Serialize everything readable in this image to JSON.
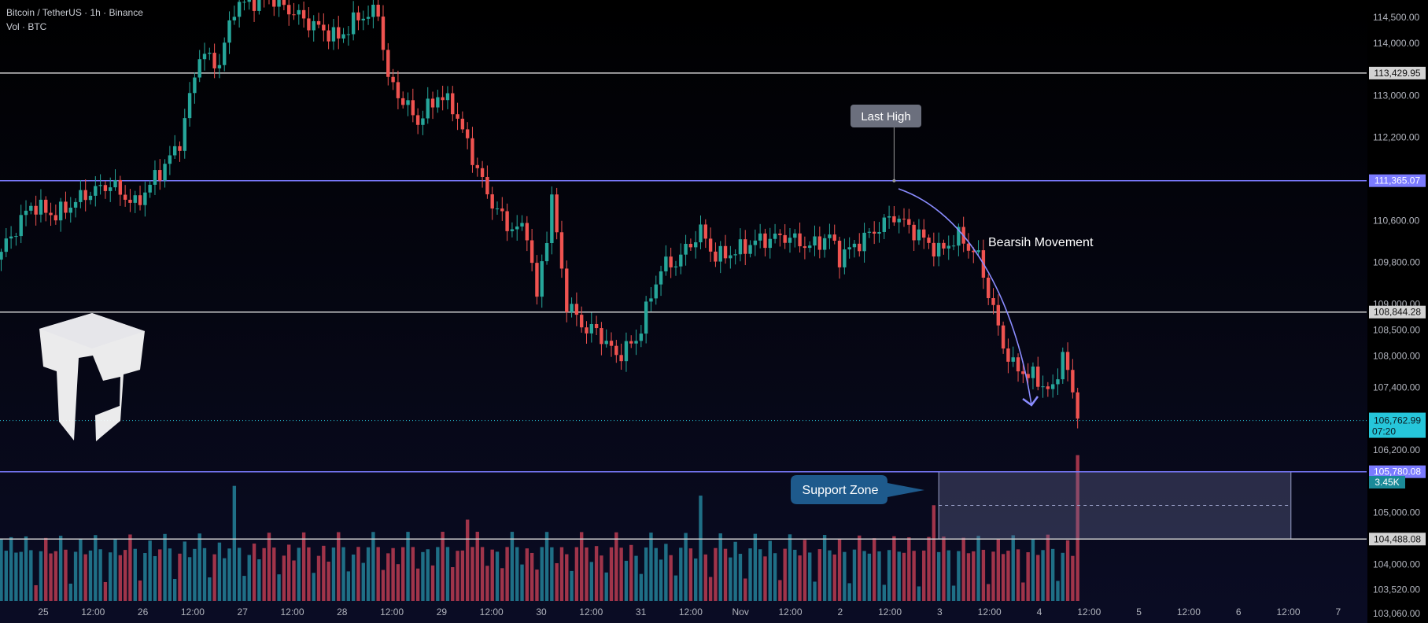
{
  "header": {
    "symbol_line": "Bitcoin / TetherUS · 1h · Binance",
    "volume_line": "Vol · BTC"
  },
  "colors": {
    "up": "#26a69a",
    "down": "#ef5350",
    "up_vol": "#1f6f86",
    "down_vol": "#a0344a",
    "blue_line": "#7b7bff",
    "white_line": "#d0d0d0",
    "current_price": "#26c6da",
    "arrow": "#8a8cff"
  },
  "chart_data": {
    "type": "candlestick",
    "symbol": "BTCUSDT",
    "timeframe": "1h",
    "ylim": [
      102960,
      114800
    ],
    "y_ticks": [
      "114,500.00",
      "114,000.00",
      "113,000.00",
      "112,200.00",
      "110,600.00",
      "109,800.00",
      "109,000.00",
      "108,500.00",
      "108,000.00",
      "107,400.00",
      "106,200.00",
      "105,000.00",
      "104,000.00",
      "103,520.00",
      "103,060.00"
    ],
    "x_ticks": [
      "25",
      "12:00",
      "26",
      "12:00",
      "27",
      "12:00",
      "28",
      "12:00",
      "29",
      "12:00",
      "30",
      "12:00",
      "31",
      "12:00",
      "Nov",
      "12:00",
      "2",
      "12:00",
      "3",
      "12:00",
      "4",
      "12:00",
      "5",
      "12:00",
      "6",
      "12:00",
      "7"
    ],
    "levels": [
      {
        "price": 113429.95,
        "label": "113,429.95",
        "style": "white"
      },
      {
        "price": 111365.07,
        "label": "111,365.07",
        "style": "blue"
      },
      {
        "price": 108844.28,
        "label": "108,844.28",
        "style": "white"
      },
      {
        "price": 105780.08,
        "label": "105,780.08",
        "style": "blue"
      },
      {
        "price": 104488.08,
        "label": "104,488.08",
        "style": "white"
      }
    ],
    "current_price": {
      "price": 106762.99,
      "label": "106,762.99",
      "countdown": "07:20"
    },
    "volume_label": "3.45K",
    "path": [
      [
        0,
        110000
      ],
      [
        6,
        110900
      ],
      [
        11,
        110700
      ],
      [
        17,
        111100
      ],
      [
        22,
        111300
      ],
      [
        27,
        110900
      ],
      [
        34,
        111800
      ],
      [
        36,
        112100
      ],
      [
        40,
        113800
      ],
      [
        44,
        113600
      ],
      [
        47,
        114700
      ],
      [
        54,
        114900
      ],
      [
        62,
        114400
      ],
      [
        68,
        114100
      ],
      [
        72,
        114500
      ],
      [
        76,
        114600
      ],
      [
        78,
        113300
      ],
      [
        84,
        112500
      ],
      [
        88,
        113000
      ],
      [
        91,
        112800
      ],
      [
        98,
        111100
      ],
      [
        102,
        110500
      ],
      [
        106,
        110400
      ],
      [
        108,
        109100
      ],
      [
        111,
        111000
      ],
      [
        114,
        109000
      ],
      [
        118,
        108500
      ],
      [
        120,
        108500
      ],
      [
        124,
        108000
      ],
      [
        128,
        108300
      ],
      [
        133,
        109700
      ],
      [
        136,
        109800
      ],
      [
        141,
        110400
      ],
      [
        144,
        109900
      ],
      [
        148,
        110000
      ],
      [
        152,
        110200
      ],
      [
        158,
        110300
      ],
      [
        163,
        110100
      ],
      [
        167,
        110300
      ],
      [
        169,
        109900
      ],
      [
        176,
        110400
      ],
      [
        180,
        110700
      ],
      [
        184,
        110400
      ],
      [
        189,
        110000
      ],
      [
        193,
        110300
      ],
      [
        197,
        109900
      ],
      [
        202,
        108200
      ],
      [
        204,
        107800
      ],
      [
        208,
        107600
      ],
      [
        212,
        107300
      ],
      [
        214,
        108100
      ],
      [
        217,
        106800
      ]
    ],
    "annotations": {
      "last_high": {
        "text": "Last High",
        "index": 180,
        "price": 111365.07
      },
      "movement": "Bearsih Movement",
      "support_zone": {
        "text": "Support Zone",
        "from_index": 189,
        "to_index": 260,
        "top": 105780.08,
        "bottom": 104488.08
      }
    }
  }
}
